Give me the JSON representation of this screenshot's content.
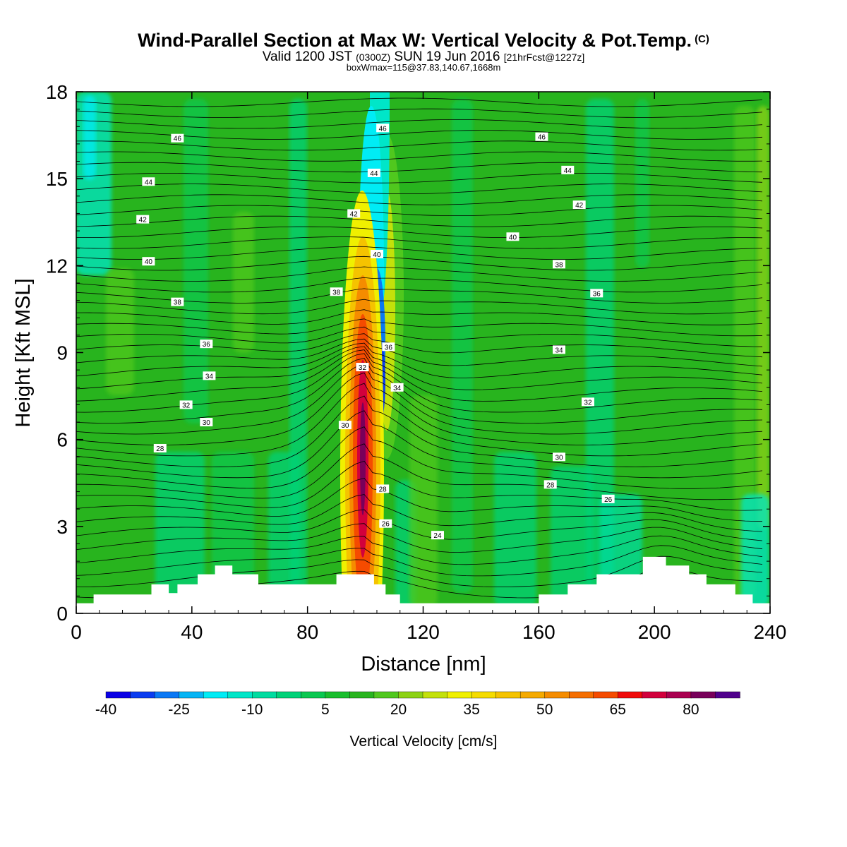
{
  "header": {
    "title": "Wind-Parallel Section at Max W: Vertical Velocity & Pot.Temp.",
    "title_mark": "(C)",
    "valid_prefix": "Valid 1200 JST",
    "valid_utc": "(0300Z)",
    "valid_date": "SUN 19 Jun 2016",
    "forecast": "[21hrFcst@1227z]",
    "boxw": "boxWmax=115@37.83,140.67,1668m"
  },
  "chart_data": {
    "type": "heatmap",
    "xlabel": "Distance [nm]",
    "ylabel": "Height [Kft MSL]",
    "xlim": [
      0,
      240
    ],
    "ylim": [
      0,
      18
    ],
    "x_ticks": [
      "0",
      "40",
      "80",
      "120",
      "160",
      "200",
      "240"
    ],
    "y_ticks": [
      "0",
      "3",
      "6",
      "9",
      "12",
      "15",
      "18"
    ],
    "colorbar": {
      "label": "Vertical Velocity [cm/s]",
      "tick_labels": [
        "-40",
        "-25",
        "-10",
        "5",
        "20",
        "35",
        "50",
        "65",
        "80"
      ],
      "colors": [
        "#0a00e6",
        "#0a3cf0",
        "#0a78f5",
        "#05b4f5",
        "#00ecf5",
        "#00e6c8",
        "#00dca0",
        "#00d278",
        "#0ac850",
        "#19be2d",
        "#28b41e",
        "#50c81e",
        "#8cd214",
        "#c3e10a",
        "#f0f000",
        "#f5dc00",
        "#f5c300",
        "#f5aa00",
        "#f58c00",
        "#f56e00",
        "#f54b00",
        "#f00a0a",
        "#d2003c",
        "#aa0050",
        "#78005a",
        "#50008c"
      ]
    },
    "theta_labels": [
      {
        "x": 35,
        "z": 16.4,
        "t": "46"
      },
      {
        "x": 25,
        "z": 14.9,
        "t": "44"
      },
      {
        "x": 23,
        "z": 13.6,
        "t": "42"
      },
      {
        "x": 25,
        "z": 12.15,
        "t": "40"
      },
      {
        "x": 35,
        "z": 10.75,
        "t": "38"
      },
      {
        "x": 45,
        "z": 9.3,
        "t": "36"
      },
      {
        "x": 46,
        "z": 8.2,
        "t": "34"
      },
      {
        "x": 38,
        "z": 7.2,
        "t": "32"
      },
      {
        "x": 45,
        "z": 6.6,
        "t": "30"
      },
      {
        "x": 29,
        "z": 5.7,
        "t": "28"
      },
      {
        "x": 106,
        "z": 16.75,
        "t": "46"
      },
      {
        "x": 103,
        "z": 15.2,
        "t": "44"
      },
      {
        "x": 96,
        "z": 13.8,
        "t": "42"
      },
      {
        "x": 104,
        "z": 12.4,
        "t": "40"
      },
      {
        "x": 90,
        "z": 11.1,
        "t": "38"
      },
      {
        "x": 108,
        "z": 9.2,
        "t": "36"
      },
      {
        "x": 99,
        "z": 8.5,
        "t": "32"
      },
      {
        "x": 111,
        "z": 7.8,
        "t": "34"
      },
      {
        "x": 93,
        "z": 6.5,
        "t": "30"
      },
      {
        "x": 106,
        "z": 4.3,
        "t": "28"
      },
      {
        "x": 107,
        "z": 3.1,
        "t": "26"
      },
      {
        "x": 125,
        "z": 2.7,
        "t": "24"
      },
      {
        "x": 161,
        "z": 16.45,
        "t": "46"
      },
      {
        "x": 170,
        "z": 15.3,
        "t": "44"
      },
      {
        "x": 174,
        "z": 14.1,
        "t": "42"
      },
      {
        "x": 151,
        "z": 13.0,
        "t": "40"
      },
      {
        "x": 167,
        "z": 12.05,
        "t": "38"
      },
      {
        "x": 180,
        "z": 11.05,
        "t": "36"
      },
      {
        "x": 167,
        "z": 9.1,
        "t": "34"
      },
      {
        "x": 177,
        "z": 7.3,
        "t": "32"
      },
      {
        "x": 167,
        "z": 5.4,
        "t": "30"
      },
      {
        "x": 164,
        "z": 4.45,
        "t": "28"
      },
      {
        "x": 184,
        "z": 3.95,
        "t": "26"
      }
    ],
    "terrain_profile": [
      [
        0,
        0.35
      ],
      [
        6,
        0.35
      ],
      [
        6,
        0.65
      ],
      [
        26,
        0.65
      ],
      [
        26,
        1.0
      ],
      [
        32,
        1.0
      ],
      [
        32,
        0.7
      ],
      [
        35,
        0.7
      ],
      [
        35,
        1.0
      ],
      [
        42,
        1.0
      ],
      [
        42,
        1.35
      ],
      [
        48,
        1.35
      ],
      [
        48,
        1.65
      ],
      [
        54,
        1.65
      ],
      [
        54,
        1.35
      ],
      [
        63,
        1.35
      ],
      [
        63,
        1.0
      ],
      [
        90,
        1.0
      ],
      [
        90,
        1.35
      ],
      [
        103,
        1.35
      ],
      [
        103,
        1.0
      ],
      [
        107,
        1.0
      ],
      [
        107,
        0.65
      ],
      [
        112,
        0.65
      ],
      [
        112,
        0.35
      ],
      [
        160,
        0.35
      ],
      [
        160,
        0.65
      ],
      [
        170,
        0.65
      ],
      [
        170,
        1.0
      ],
      [
        180,
        1.0
      ],
      [
        180,
        1.35
      ],
      [
        196,
        1.35
      ],
      [
        196,
        1.95
      ],
      [
        204,
        1.95
      ],
      [
        204,
        1.65
      ],
      [
        212,
        1.65
      ],
      [
        212,
        1.35
      ],
      [
        218,
        1.35
      ],
      [
        218,
        1.0
      ],
      [
        228,
        1.0
      ],
      [
        228,
        0.65
      ],
      [
        234,
        0.65
      ],
      [
        234,
        0.35
      ],
      [
        240,
        0.35
      ]
    ]
  }
}
